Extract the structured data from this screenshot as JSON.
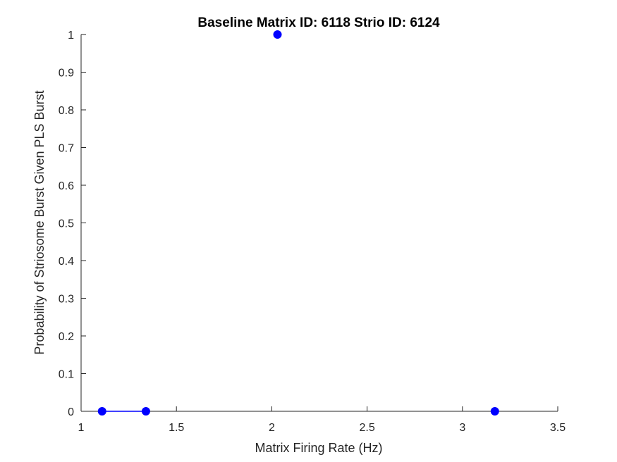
{
  "chart_data": {
    "type": "line",
    "title": "Baseline Matrix ID: 6118 Strio ID: 6124",
    "xlabel": "Matrix Firing Rate (Hz)",
    "ylabel": "Probability of Striosome Burst Given PLS Burst",
    "xlim": [
      1,
      3.5
    ],
    "ylim": [
      0,
      1
    ],
    "xticks": [
      "1",
      "1.5",
      "2",
      "2.5",
      "3",
      "3.5"
    ],
    "yticks": [
      "0",
      "0.1",
      "0.2",
      "0.3",
      "0.4",
      "0.5",
      "0.6",
      "0.7",
      "0.8",
      "0.9",
      "1"
    ],
    "grid": false,
    "series": [
      {
        "color": "#0000ff",
        "marker": "circle",
        "points": [
          {
            "x": 1.11,
            "y": 0
          },
          {
            "x": 1.34,
            "y": 0
          },
          {
            "x": 2.03,
            "y": 1
          },
          {
            "x": 3.17,
            "y": 0
          }
        ],
        "connected_segments": [
          [
            0,
            1
          ]
        ]
      }
    ]
  }
}
